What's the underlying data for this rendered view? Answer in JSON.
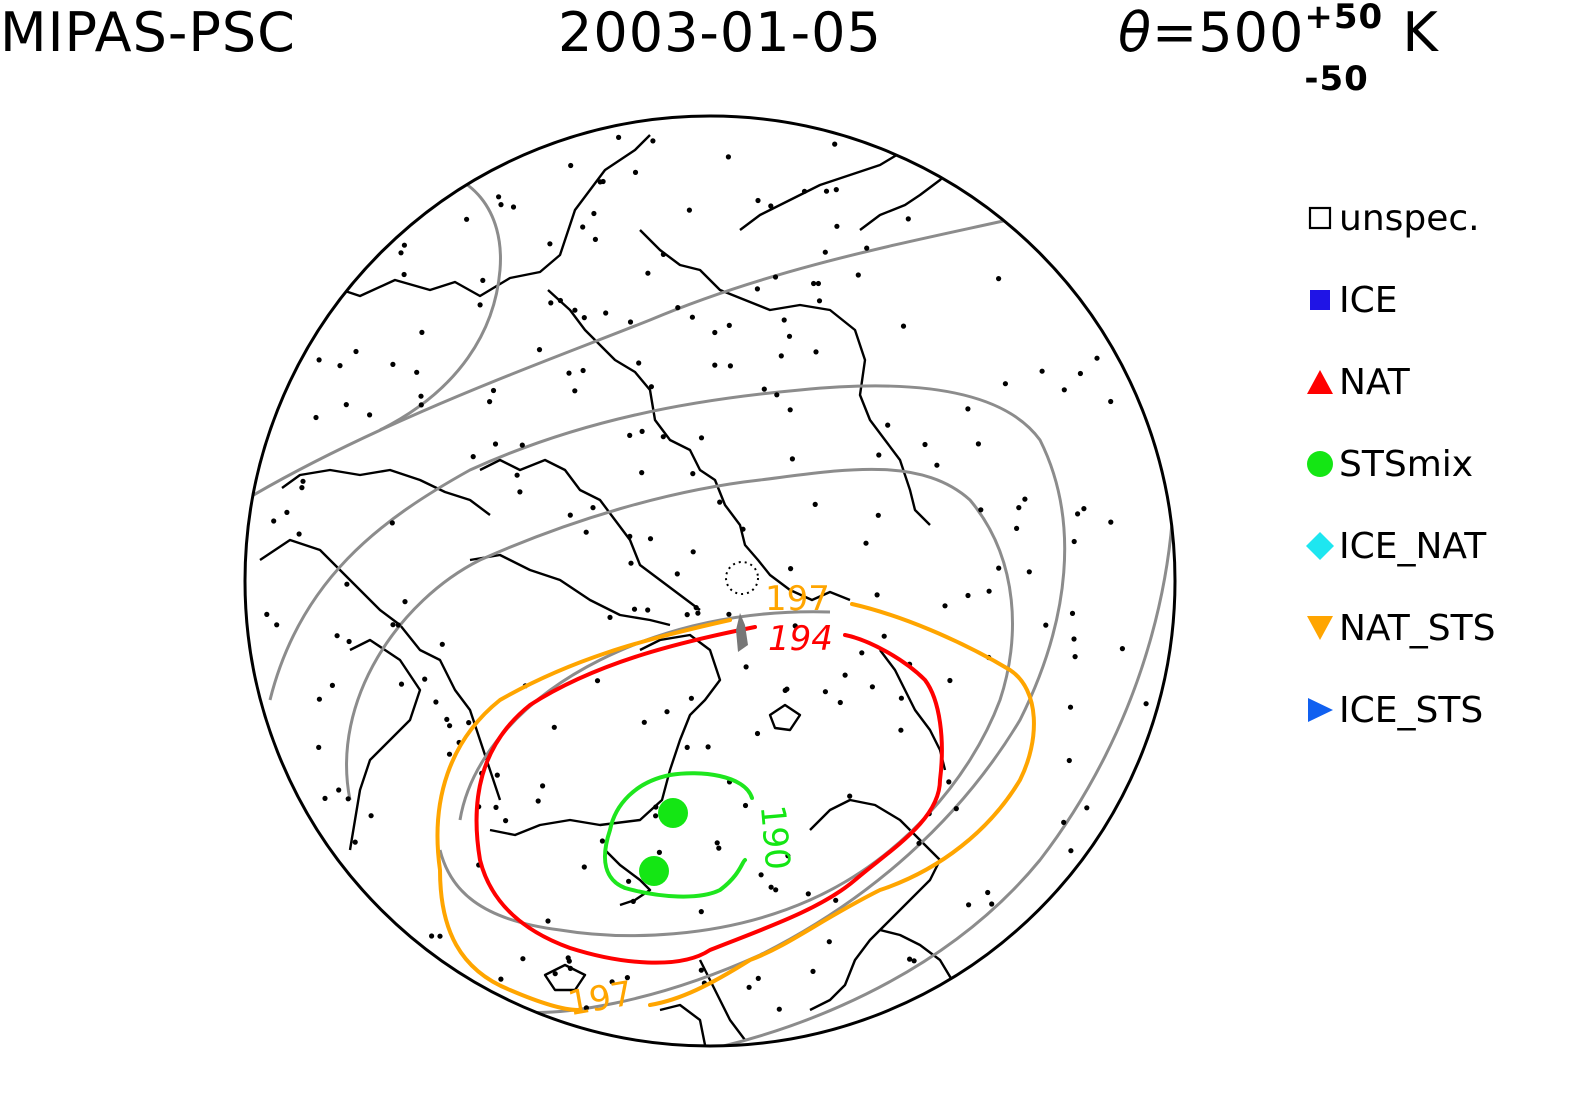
{
  "header": {
    "instrument": "MIPAS-PSC",
    "date": "2003-01-05",
    "theta_symbol": "θ",
    "theta_eq": "=500",
    "theta_sup": "+50",
    "theta_sub": "-50",
    "theta_unit": "K"
  },
  "legend": [
    {
      "label": "unspec.",
      "marker": "open-square",
      "color": "#000000"
    },
    {
      "label": "ICE",
      "marker": "filled-square",
      "color": "#1f14e6"
    },
    {
      "label": "NAT",
      "marker": "triangle-up",
      "color": "#ff0000"
    },
    {
      "label": "STSmix",
      "marker": "circle",
      "color": "#14e614"
    },
    {
      "label": "ICE_NAT",
      "marker": "diamond",
      "color": "#1ee6f0"
    },
    {
      "label": "NAT_STS",
      "marker": "triangle-down",
      "color": "#ffa500"
    },
    {
      "label": "ICE_STS",
      "marker": "triangle-right",
      "color": "#1060f0"
    }
  ],
  "contours": [
    {
      "label": "197",
      "color": "#ffa500"
    },
    {
      "label": "194",
      "color": "#ff0000"
    },
    {
      "label": "190",
      "color": "#14e614"
    }
  ],
  "colors": {
    "coast": "#000000",
    "isoline_gray": "#8c8c8c"
  }
}
